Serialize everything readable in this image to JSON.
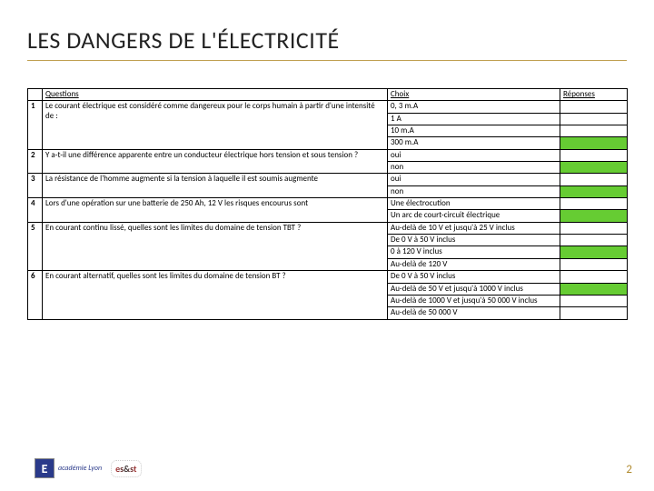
{
  "title": "LES DANGERS DE L'ÉLECTRICITÉ",
  "headers": {
    "questions": "Questions",
    "choix": "Choix",
    "reponses": "Réponses"
  },
  "rows": [
    {
      "n": "1",
      "q": "Le courant électrique est considéré comme dangereux pour le corps humain à partir d'une intensité de :",
      "choices": [
        {
          "t": "0, 3 m.A",
          "g": false
        },
        {
          "t": "1 A",
          "g": false
        },
        {
          "t": "10 m.A",
          "g": false
        },
        {
          "t": "300 m.A",
          "g": true
        }
      ]
    },
    {
      "n": "2",
      "q": "Y a-t-il une différence apparente entre un conducteur électrique hors tension et sous tension ?",
      "choices": [
        {
          "t": "oui",
          "g": false
        },
        {
          "t": "non",
          "g": true
        }
      ]
    },
    {
      "n": "3",
      "q": "La résistance de l'homme augmente si la tension à laquelle il est soumis augmente",
      "choices": [
        {
          "t": "oui",
          "g": false
        },
        {
          "t": "non",
          "g": true
        }
      ]
    },
    {
      "n": "4",
      "q": "Lors d'une opération sur une batterie de 250 Ah, 12 V les risques encourus sont",
      "choices": [
        {
          "t": "Une électrocution",
          "g": false
        },
        {
          "t": "Un arc de court-circuit électrique",
          "g": true
        }
      ]
    },
    {
      "n": "5",
      "q": "En courant continu lissé, quelles sont les limites du domaine de tension TBT ?",
      "choices": [
        {
          "t": "Au-delà de 10 V et jusqu'à 25 V inclus",
          "g": false
        },
        {
          "t": "De 0 V à 50 V inclus",
          "g": false
        },
        {
          "t": "0 à 120 V inclus",
          "g": true
        },
        {
          "t": "Au-delà de 120 V",
          "g": false
        }
      ]
    },
    {
      "n": "6",
      "q": "En courant alternatif, quelles sont les limites du domaine de tension BT ?",
      "choices": [
        {
          "t": "De 0 V à 50 V inclus",
          "g": false
        },
        {
          "t": "Au-delà de 50 V et jusqu'à 1000 V inclus",
          "g": true
        },
        {
          "t": "Au-delà de 1000 V et jusqu'à 50 000 V inclus",
          "g": false
        },
        {
          "t": "Au-delà de 50 000 V",
          "g": false
        }
      ]
    }
  ],
  "footer": {
    "academie": "académie Lyon",
    "es": "es&st"
  },
  "pagenum": "2",
  "colors": {
    "title_underline": "#c0a050",
    "green": "#66cc33",
    "pagenum": "#b08a2e",
    "ac_blue": "#2a3a8a"
  }
}
